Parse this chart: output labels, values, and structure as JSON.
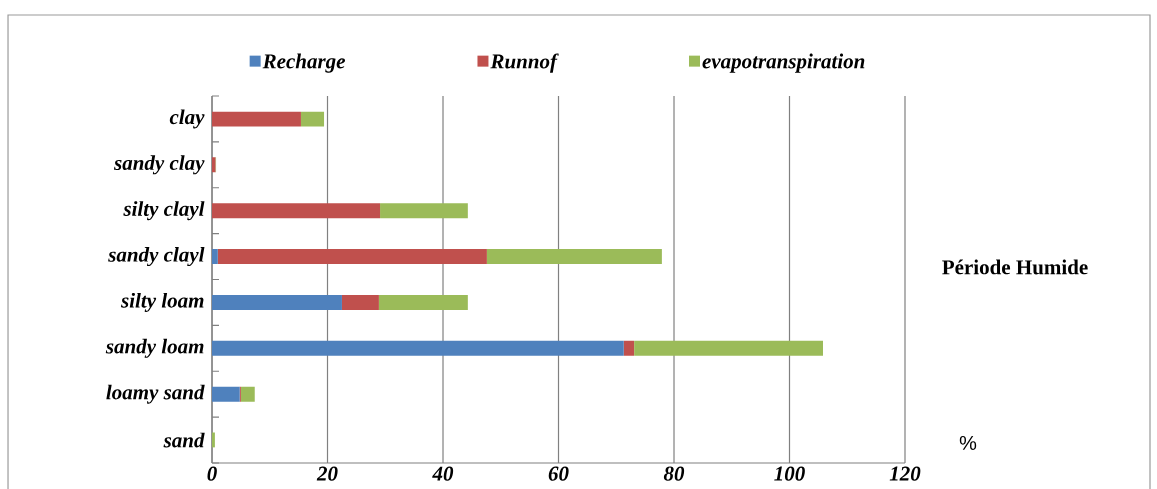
{
  "chart_data": {
    "type": "bar",
    "orientation": "horizontal",
    "stacked": true,
    "categories": [
      "clay",
      "sandy clay",
      "silty clayl",
      "sandy clayl",
      "silty loam",
      "sandy loam",
      "loamy sand",
      "sand"
    ],
    "series": [
      {
        "name": "Recharge",
        "color": "#4f81bd",
        "values": [
          0,
          0,
          0,
          1.0,
          22.5,
          71.3,
          4.8,
          0
        ]
      },
      {
        "name": "Runnof",
        "color": "#c0504d",
        "values": [
          15.4,
          0.6,
          29.1,
          46.6,
          6.4,
          1.8,
          0.2,
          0
        ]
      },
      {
        "name": "evapotranspiration",
        "color": "#9bbb59",
        "values": [
          4.0,
          0.1,
          15.2,
          30.3,
          15.4,
          32.7,
          2.4,
          0.5
        ]
      }
    ],
    "xlim": [
      0,
      120
    ],
    "xticks": [
      0,
      20,
      40,
      60,
      80,
      100,
      120
    ],
    "grid": "x",
    "legend": "top",
    "annotations": [
      "Période Humide",
      "%"
    ]
  }
}
